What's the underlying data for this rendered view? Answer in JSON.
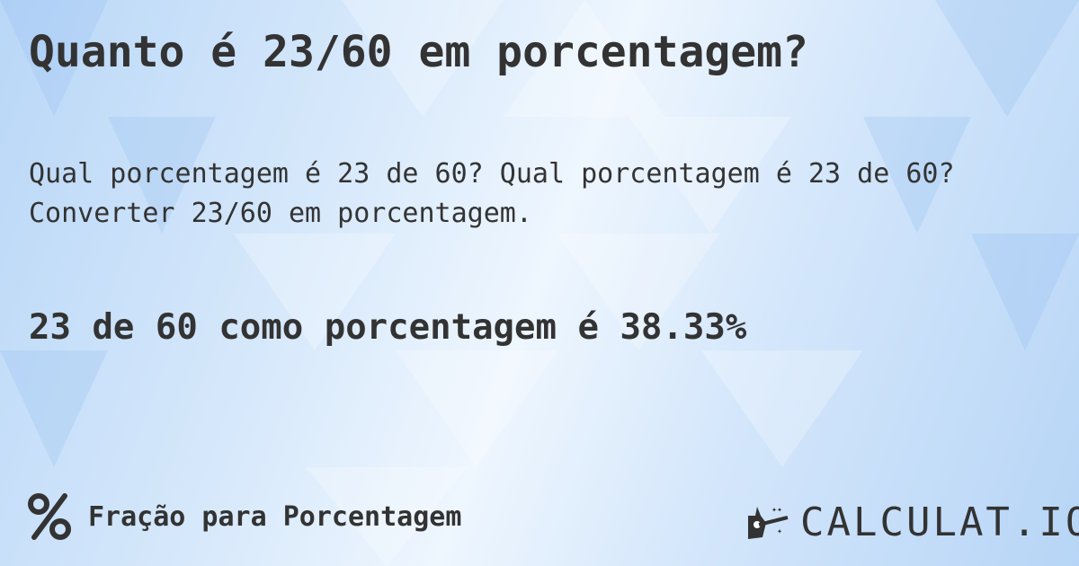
{
  "title": "Quanto é 23/60 em porcentagem?",
  "question_line1": "Qual porcentagem é 23 de 60? Qual porcentagem é 23 de 60?",
  "question_line2": "Converter 23/60 em porcentagem.",
  "result": "23 de 60 como porcentagem é 38.33%",
  "footer": {
    "icon": "percent-icon",
    "label": "Fração para Porcentagem"
  },
  "logo": {
    "text": "CALCULAT.IO",
    "icon": "magic-hand-icon"
  },
  "colors": {
    "text": "#333333",
    "background": "#cfe3f9"
  }
}
